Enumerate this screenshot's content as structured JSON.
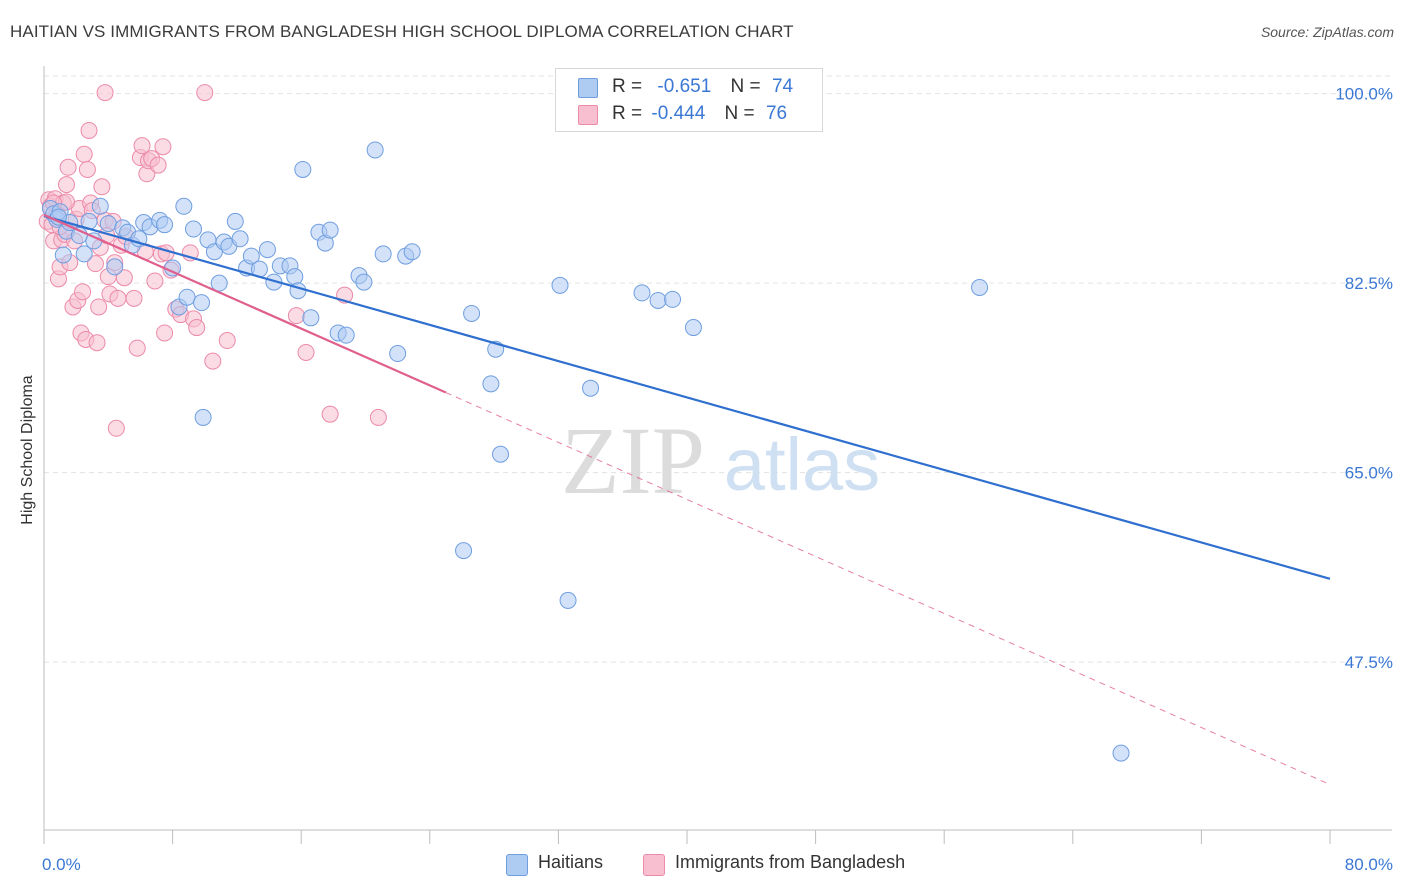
{
  "title": "HAITIAN VS IMMIGRANTS FROM BANGLADESH HIGH SCHOOL DIPLOMA CORRELATION CHART",
  "source": "Source: ZipAtlas.com",
  "watermark": {
    "zip": "ZIP",
    "atlas": "atlas"
  },
  "legend": {
    "rows": [
      {
        "r_label": "R =",
        "r_value": "-0.651",
        "n_label": "N =",
        "n_value": "74"
      },
      {
        "r_label": "R =",
        "r_value": "-0.444",
        "n_label": "N =",
        "n_value": "76"
      }
    ]
  },
  "bottom_legend": [
    "Haitians",
    "Immigrants from Bangladesh"
  ],
  "colors": {
    "blue_fill": "#aecbf2",
    "blue_stroke": "#6f9ee0",
    "blue_line": "#2f6fcf",
    "pink_fill": "#f7bfd0",
    "pink_stroke": "#ec8aa9",
    "pink_line": "#e05f8d",
    "tick_label": "#3a78d4",
    "grid": "#e3e3e3"
  },
  "chart_data": {
    "type": "scatter",
    "title": "HAITIAN VS IMMIGRANTS FROM BANGLADESH HIGH SCHOOL DIPLOMA CORRELATION CHART",
    "xlabel": "",
    "ylabel": "High School Diploma",
    "xlim": [
      0,
      80
    ],
    "ylim": [
      32,
      102
    ],
    "x_tick_labels": [
      "0.0%",
      "80.0%"
    ],
    "y_ticks": [
      47.5,
      65.0,
      82.5,
      100.0
    ],
    "y_tick_labels": [
      "47.5%",
      "65.0%",
      "82.5%",
      "100.0%"
    ],
    "grid": true,
    "series": [
      {
        "name": "Haitians",
        "color": "blue",
        "trend": {
          "x": [
            0,
            80
          ],
          "y": [
            88.7,
            55.2
          ]
        },
        "points": [
          [
            0.4,
            89.4
          ],
          [
            0.6,
            88.9
          ],
          [
            0.8,
            88.4
          ],
          [
            1.0,
            89.1
          ],
          [
            1.2,
            85.1
          ],
          [
            1.4,
            87.3
          ],
          [
            1.6,
            88.1
          ],
          [
            2.2,
            86.9
          ],
          [
            2.5,
            85.2
          ],
          [
            2.8,
            88.2
          ],
          [
            3.1,
            86.4
          ],
          [
            3.5,
            89.6
          ],
          [
            4.0,
            88.0
          ],
          [
            4.4,
            84.0
          ],
          [
            4.9,
            87.6
          ],
          [
            5.2,
            87.2
          ],
          [
            5.5,
            86.0
          ],
          [
            5.9,
            86.6
          ],
          [
            6.2,
            88.1
          ],
          [
            6.6,
            87.7
          ],
          [
            7.2,
            88.3
          ],
          [
            7.5,
            87.9
          ],
          [
            8.0,
            83.9
          ],
          [
            8.4,
            80.3
          ],
          [
            8.7,
            89.6
          ],
          [
            8.9,
            81.2
          ],
          [
            9.3,
            87.5
          ],
          [
            9.8,
            80.7
          ],
          [
            10.2,
            86.5
          ],
          [
            10.6,
            85.4
          ],
          [
            10.9,
            82.5
          ],
          [
            11.2,
            86.3
          ],
          [
            11.5,
            85.9
          ],
          [
            11.9,
            88.2
          ],
          [
            12.2,
            86.6
          ],
          [
            12.6,
            83.9
          ],
          [
            12.9,
            85.0
          ],
          [
            13.4,
            83.8
          ],
          [
            13.9,
            85.6
          ],
          [
            14.3,
            82.6
          ],
          [
            14.7,
            84.1
          ],
          [
            15.3,
            84.1
          ],
          [
            15.6,
            83.1
          ],
          [
            15.8,
            81.8
          ],
          [
            16.1,
            93.0
          ],
          [
            16.6,
            79.3
          ],
          [
            17.1,
            87.2
          ],
          [
            17.5,
            86.2
          ],
          [
            17.8,
            87.4
          ],
          [
            18.3,
            77.9
          ],
          [
            18.8,
            77.7
          ],
          [
            19.6,
            83.2
          ],
          [
            19.9,
            82.6
          ],
          [
            20.6,
            94.8
          ],
          [
            21.1,
            85.2
          ],
          [
            22.0,
            76.0
          ],
          [
            22.5,
            85.0
          ],
          [
            22.9,
            85.4
          ],
          [
            26.6,
            79.7
          ],
          [
            27.8,
            73.2
          ],
          [
            28.1,
            76.4
          ],
          [
            28.4,
            66.7
          ],
          [
            32.1,
            82.3
          ],
          [
            34.0,
            72.8
          ],
          [
            37.2,
            81.6
          ],
          [
            38.2,
            80.9
          ],
          [
            39.1,
            81.0
          ],
          [
            40.4,
            78.4
          ],
          [
            58.2,
            82.1
          ],
          [
            9.9,
            70.1
          ],
          [
            26.1,
            57.8
          ],
          [
            32.6,
            53.2
          ],
          [
            67.0,
            39.1
          ],
          [
            0.9,
            88.6
          ]
        ]
      },
      {
        "name": "Immigrants from Bangladesh",
        "color": "pink",
        "trend": {
          "x": [
            0,
            25.0
          ],
          "y": [
            88.8,
            72.4
          ]
        },
        "trend_dashed": {
          "x": [
            25.0,
            80
          ],
          "y": [
            72.4,
            36.2
          ]
        },
        "points": [
          [
            0.2,
            88.2
          ],
          [
            0.3,
            90.2
          ],
          [
            0.4,
            89.6
          ],
          [
            0.5,
            87.9
          ],
          [
            0.6,
            86.4
          ],
          [
            0.7,
            90.3
          ],
          [
            0.8,
            88.9
          ],
          [
            0.9,
            82.9
          ],
          [
            1.0,
            84.0
          ],
          [
            1.1,
            86.5
          ],
          [
            1.2,
            89.9
          ],
          [
            1.3,
            87.0
          ],
          [
            1.4,
            91.6
          ],
          [
            1.5,
            93.2
          ],
          [
            1.6,
            84.4
          ],
          [
            1.8,
            80.3
          ],
          [
            1.9,
            86.4
          ],
          [
            2.0,
            88.4
          ],
          [
            2.1,
            80.9
          ],
          [
            2.2,
            89.4
          ],
          [
            2.3,
            77.9
          ],
          [
            2.4,
            81.7
          ],
          [
            2.5,
            94.4
          ],
          [
            2.6,
            77.3
          ],
          [
            2.7,
            93.0
          ],
          [
            2.8,
            96.6
          ],
          [
            2.9,
            89.9
          ],
          [
            3.0,
            89.2
          ],
          [
            3.2,
            84.3
          ],
          [
            3.3,
            77.0
          ],
          [
            3.4,
            80.3
          ],
          [
            3.5,
            85.8
          ],
          [
            3.6,
            91.4
          ],
          [
            3.8,
            88.3
          ],
          [
            3.9,
            86.9
          ],
          [
            4.0,
            83.1
          ],
          [
            4.1,
            81.5
          ],
          [
            4.3,
            88.2
          ],
          [
            4.4,
            84.4
          ],
          [
            4.6,
            81.1
          ],
          [
            4.8,
            86.0
          ],
          [
            5.0,
            83.0
          ],
          [
            5.1,
            86.8
          ],
          [
            5.6,
            81.1
          ],
          [
            5.8,
            76.5
          ],
          [
            6.0,
            94.1
          ],
          [
            6.1,
            95.2
          ],
          [
            6.3,
            85.4
          ],
          [
            6.4,
            92.6
          ],
          [
            6.5,
            93.8
          ],
          [
            6.7,
            94.0
          ],
          [
            6.9,
            82.7
          ],
          [
            7.1,
            93.4
          ],
          [
            7.3,
            85.2
          ],
          [
            7.4,
            95.1
          ],
          [
            7.5,
            77.9
          ],
          [
            7.6,
            85.3
          ],
          [
            7.9,
            83.7
          ],
          [
            8.2,
            80.1
          ],
          [
            8.5,
            79.6
          ],
          [
            9.1,
            85.3
          ],
          [
            9.3,
            79.2
          ],
          [
            9.5,
            78.4
          ],
          [
            10.0,
            100.1
          ],
          [
            10.5,
            75.3
          ],
          [
            11.4,
            77.2
          ],
          [
            15.7,
            79.5
          ],
          [
            16.3,
            76.1
          ],
          [
            17.8,
            70.4
          ],
          [
            18.7,
            81.4
          ],
          [
            20.8,
            70.1
          ],
          [
            3.8,
            100.1
          ],
          [
            1.4,
            90.0
          ],
          [
            0.6,
            89.9
          ],
          [
            1.0,
            87.7
          ],
          [
            4.5,
            69.1
          ]
        ]
      }
    ]
  }
}
